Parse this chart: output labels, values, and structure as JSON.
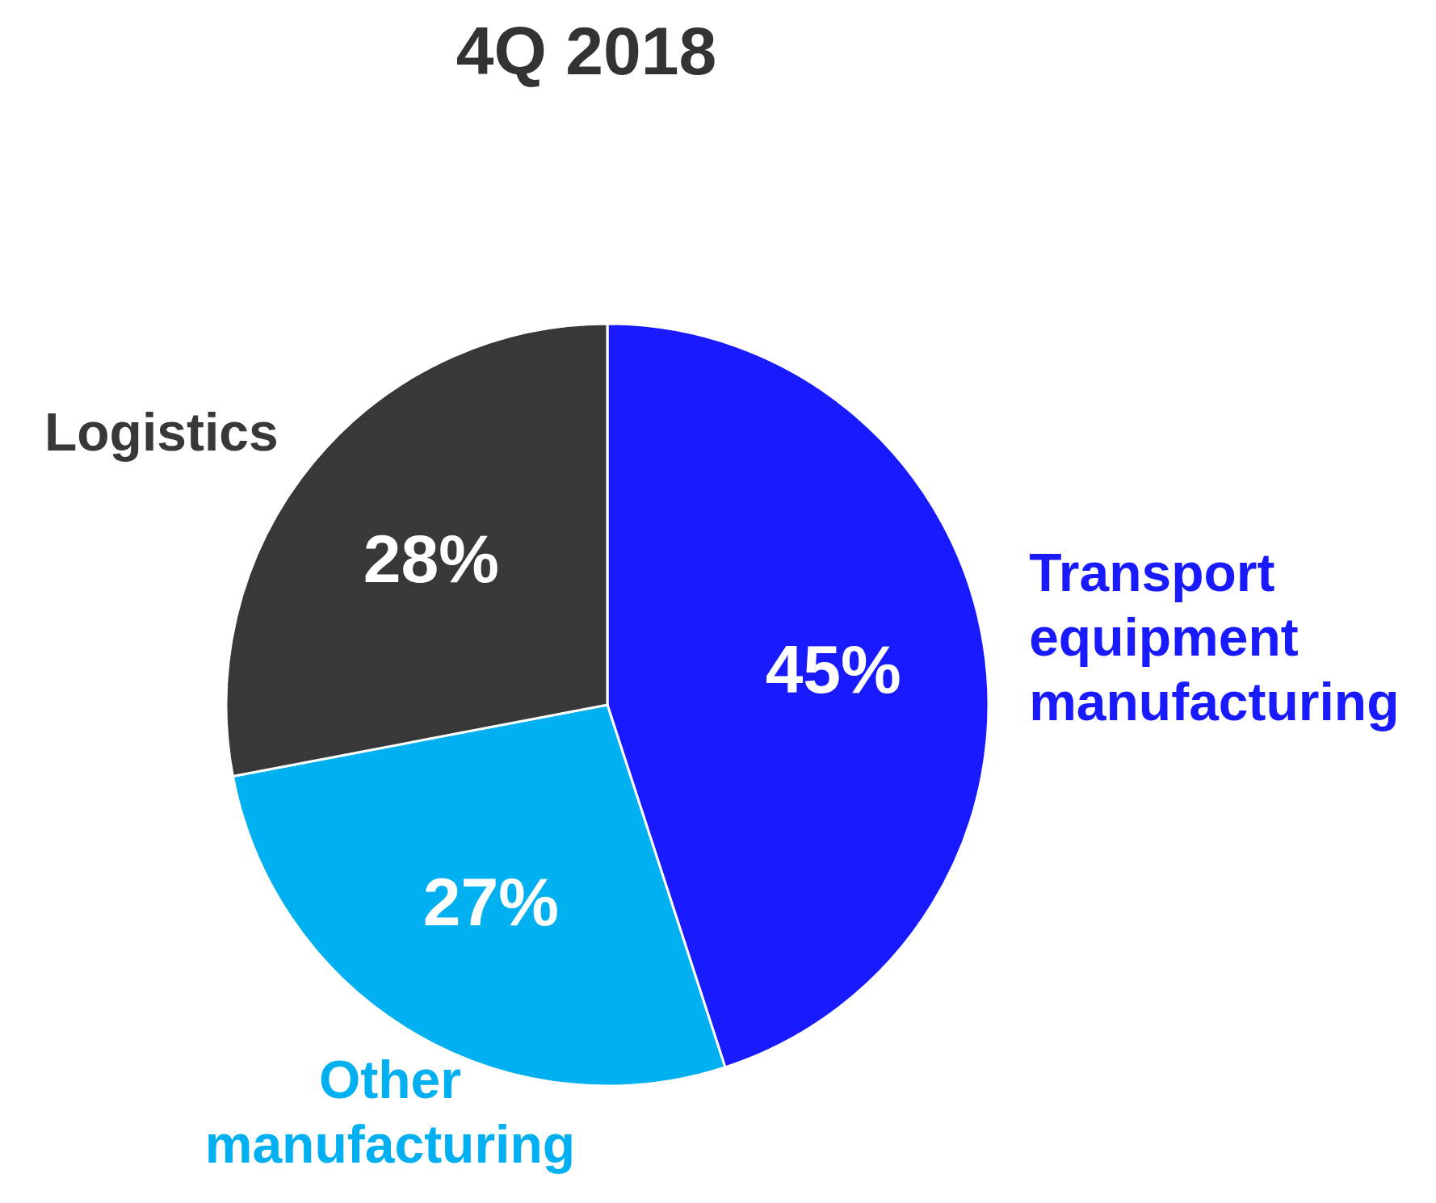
{
  "chart_data": {
    "type": "pie",
    "title": "4Q 2018",
    "categories": [
      "Transport equipment manufacturing",
      "Other manufacturing",
      "Logistics"
    ],
    "values": [
      45,
      27,
      28
    ],
    "value_labels": [
      "45%",
      "27%",
      "28%"
    ],
    "colors": [
      "#1a1aff",
      "#00b0f0",
      "#383838"
    ]
  }
}
